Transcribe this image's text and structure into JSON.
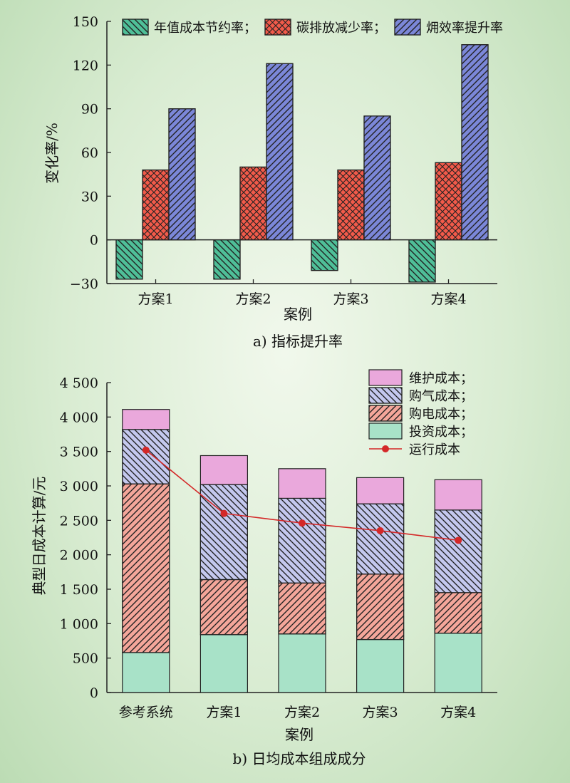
{
  "chart_data": [
    {
      "type": "bar",
      "title": "a) 指标提升率",
      "xlabel": "案例",
      "ylabel": "变化率/%",
      "ylim": [
        -30,
        150
      ],
      "yticks": [
        "−30",
        "0",
        "30",
        "60",
        "90",
        "120",
        "150"
      ],
      "categories": [
        "方案1",
        "方案2",
        "方案3",
        "方案4"
      ],
      "legend_position": "top",
      "series": [
        {
          "name": "年值成本节约率；",
          "color": "#4fbf98",
          "pattern": "hatch-back",
          "values": [
            -27,
            -27,
            -21,
            -29
          ]
        },
        {
          "name": "碳排放减少率；",
          "color": "#f25a4a",
          "pattern": "crosshatch",
          "values": [
            48,
            50,
            48,
            53
          ]
        },
        {
          "name": "㶲效率提升率",
          "color": "#7b87d8",
          "pattern": "hatch-fwd",
          "values": [
            90,
            121,
            85,
            134
          ]
        }
      ]
    },
    {
      "type": "stacked-bar-line",
      "title": "b) 日均成本组成成分",
      "xlabel": "案例",
      "ylabel": "典型日成本计算/元",
      "ylim": [
        0,
        4500
      ],
      "yticks": [
        "0",
        "500",
        "1 000",
        "1 500",
        "2 000",
        "2 500",
        "3 000",
        "3 500",
        "4 000",
        "4 500"
      ],
      "categories": [
        "参考系统",
        "方案1",
        "方案2",
        "方案3",
        "方案4"
      ],
      "legend_position": "top-right",
      "stacked_series": [
        {
          "name": "投资成本；",
          "color": "#a8e2c8",
          "pattern": "solid",
          "values": [
            580,
            840,
            850,
            770,
            860
          ]
        },
        {
          "name": "购电成本；",
          "color": "#f4a69a",
          "pattern": "hatch-fwd",
          "values": [
            2450,
            800,
            740,
            950,
            590
          ]
        },
        {
          "name": "购气成本；",
          "color": "#c4c8ee",
          "pattern": "hatch-back",
          "values": [
            790,
            1380,
            1230,
            1020,
            1200
          ]
        },
        {
          "name": "维护成本；",
          "color": "#eaa8dc",
          "pattern": "solid",
          "values": [
            290,
            420,
            430,
            380,
            440
          ]
        }
      ],
      "line_series": {
        "name": "运行成本",
        "color": "#d42828",
        "values": [
          3520,
          2600,
          2460,
          2350,
          2210
        ]
      }
    }
  ]
}
